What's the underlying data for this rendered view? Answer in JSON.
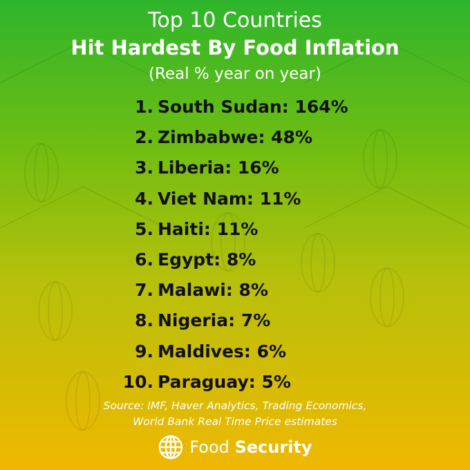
{
  "header": {
    "title_line1": "Top 10 Countries",
    "title_line2": "Hit Hardest By Food Inflation",
    "subtitle": "(Real % year on year)"
  },
  "list": [
    {
      "rank": "1.",
      "text": "South Sudan: 164%"
    },
    {
      "rank": "2.",
      "text": "Zimbabwe: 48%"
    },
    {
      "rank": "3.",
      "text": "Liberia: 16%"
    },
    {
      "rank": "4.",
      "text": "Viet Nam: 11%"
    },
    {
      "rank": "5.",
      "text": "Haiti: 11%"
    },
    {
      "rank": "6.",
      "text": "Egypt: 8%"
    },
    {
      "rank": "7.",
      "text": "Malawi: 8%"
    },
    {
      "rank": "8.",
      "text": "Nigeria: 7%"
    },
    {
      "rank": "9.",
      "text": "Maldives: 6%"
    },
    {
      "rank": "10.",
      "text": "Paraguay: 5%"
    }
  ],
  "footer": {
    "source_line1": "Source: IMF, Haver Analytics, Trading Economics,",
    "source_line2": "World Bank Real Time Price estimates",
    "logo_word1": "Food",
    "logo_word2": "Security"
  }
}
